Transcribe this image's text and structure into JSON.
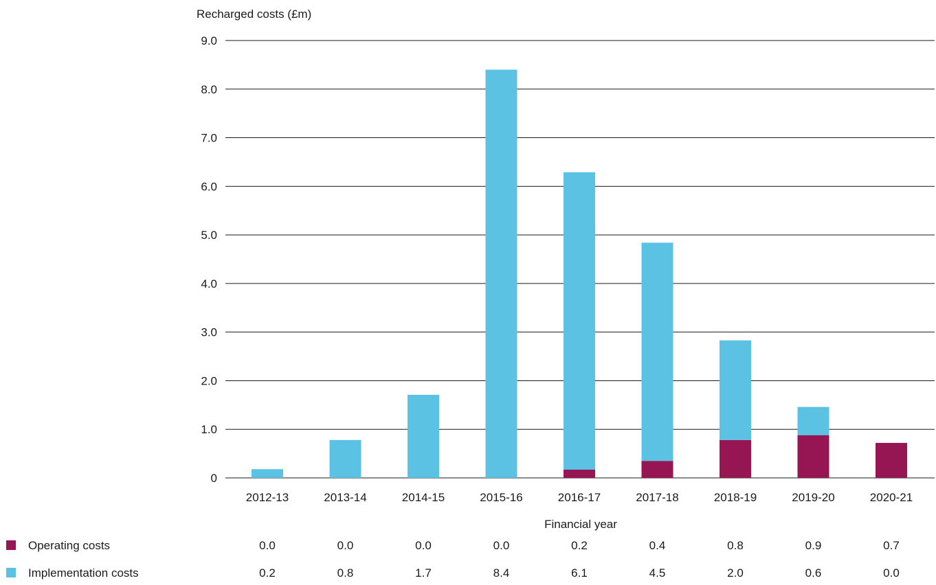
{
  "chart_data": {
    "type": "bar",
    "stacked": true,
    "ylabel": "Recharged costs (£m)",
    "xlabel": "Financial year",
    "ylim": [
      0,
      9
    ],
    "y_ticks": [
      0,
      1,
      2,
      3,
      4,
      5,
      6,
      7,
      8,
      9
    ],
    "y_tick_labels": [
      "0",
      "1.0",
      "2.0",
      "3.0",
      "4.0",
      "5.0",
      "6.0",
      "7.0",
      "8.0",
      "9.0"
    ],
    "grid": true,
    "legend_position": "bottom-left (data table)",
    "categories": [
      "2012-13",
      "2013-14",
      "2014-15",
      "2015-16",
      "2016-17",
      "2017-18",
      "2018-19",
      "2019-20",
      "2020-21"
    ],
    "series": [
      {
        "name": "Operating costs",
        "color": "#951652",
        "values": [
          0.0,
          0.0,
          0.0,
          0.0,
          0.17,
          0.35,
          0.78,
          0.88,
          0.72
        ],
        "table_labels": [
          "0.0",
          "0.0",
          "0.0",
          "0.0",
          "0.2",
          "0.4",
          "0.8",
          "0.9",
          "0.7"
        ]
      },
      {
        "name": "Implementation costs",
        "color": "#5bc2e4",
        "values": [
          0.18,
          0.78,
          1.71,
          8.4,
          6.12,
          4.49,
          2.05,
          0.58,
          0.0
        ],
        "table_labels": [
          "0.2",
          "0.8",
          "1.7",
          "8.4",
          "6.1",
          "4.5",
          "2.0",
          "0.6",
          "0.0"
        ]
      }
    ]
  }
}
